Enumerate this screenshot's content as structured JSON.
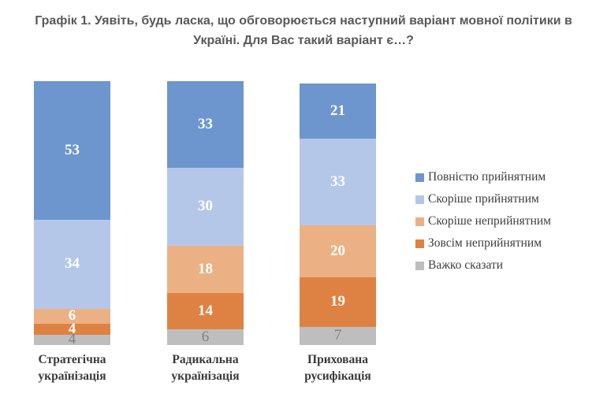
{
  "title": {
    "text": "Графік 1. Уявіть, будь ласка, що обговорюється наступний варіант мовної політики в Україні. Для Вас такий варіант є…?",
    "lines": [
      "Графік 1. Уявіть, будь ласка, що обговорюється наступний варіант мовної політики в",
      "Україні. Для Вас такий варіант є…?"
    ]
  },
  "chart_data": {
    "type": "bar",
    "stacked": true,
    "orientation": "vertical",
    "grid": false,
    "value_labels": true,
    "legend_position": "right",
    "categories": [
      "Стратегічна українізація",
      "Радикальна українізація",
      "Прихована русифікація"
    ],
    "series": [
      {
        "name": "Повністю прийнятним",
        "color": "#6D96CE",
        "label_color": "#FFFFFF",
        "values": [
          53,
          33,
          21
        ]
      },
      {
        "name": "Скоріше прийнятним",
        "color": "#B5C7E8",
        "label_color": "#FFFFFF",
        "values": [
          34,
          30,
          33
        ]
      },
      {
        "name": "Скоріше неприйнятним",
        "color": "#EBB184",
        "label_color": "#FFFFFF",
        "values": [
          6,
          18,
          20
        ]
      },
      {
        "name": "Зовсім неприйнятним",
        "color": "#DE8244",
        "label_color": "#FFFFFF",
        "values": [
          4,
          14,
          19
        ]
      },
      {
        "name": "Важко сказати",
        "color": "#BFBEBE",
        "label_color": "#808080",
        "values": [
          4,
          6,
          7
        ]
      }
    ]
  }
}
